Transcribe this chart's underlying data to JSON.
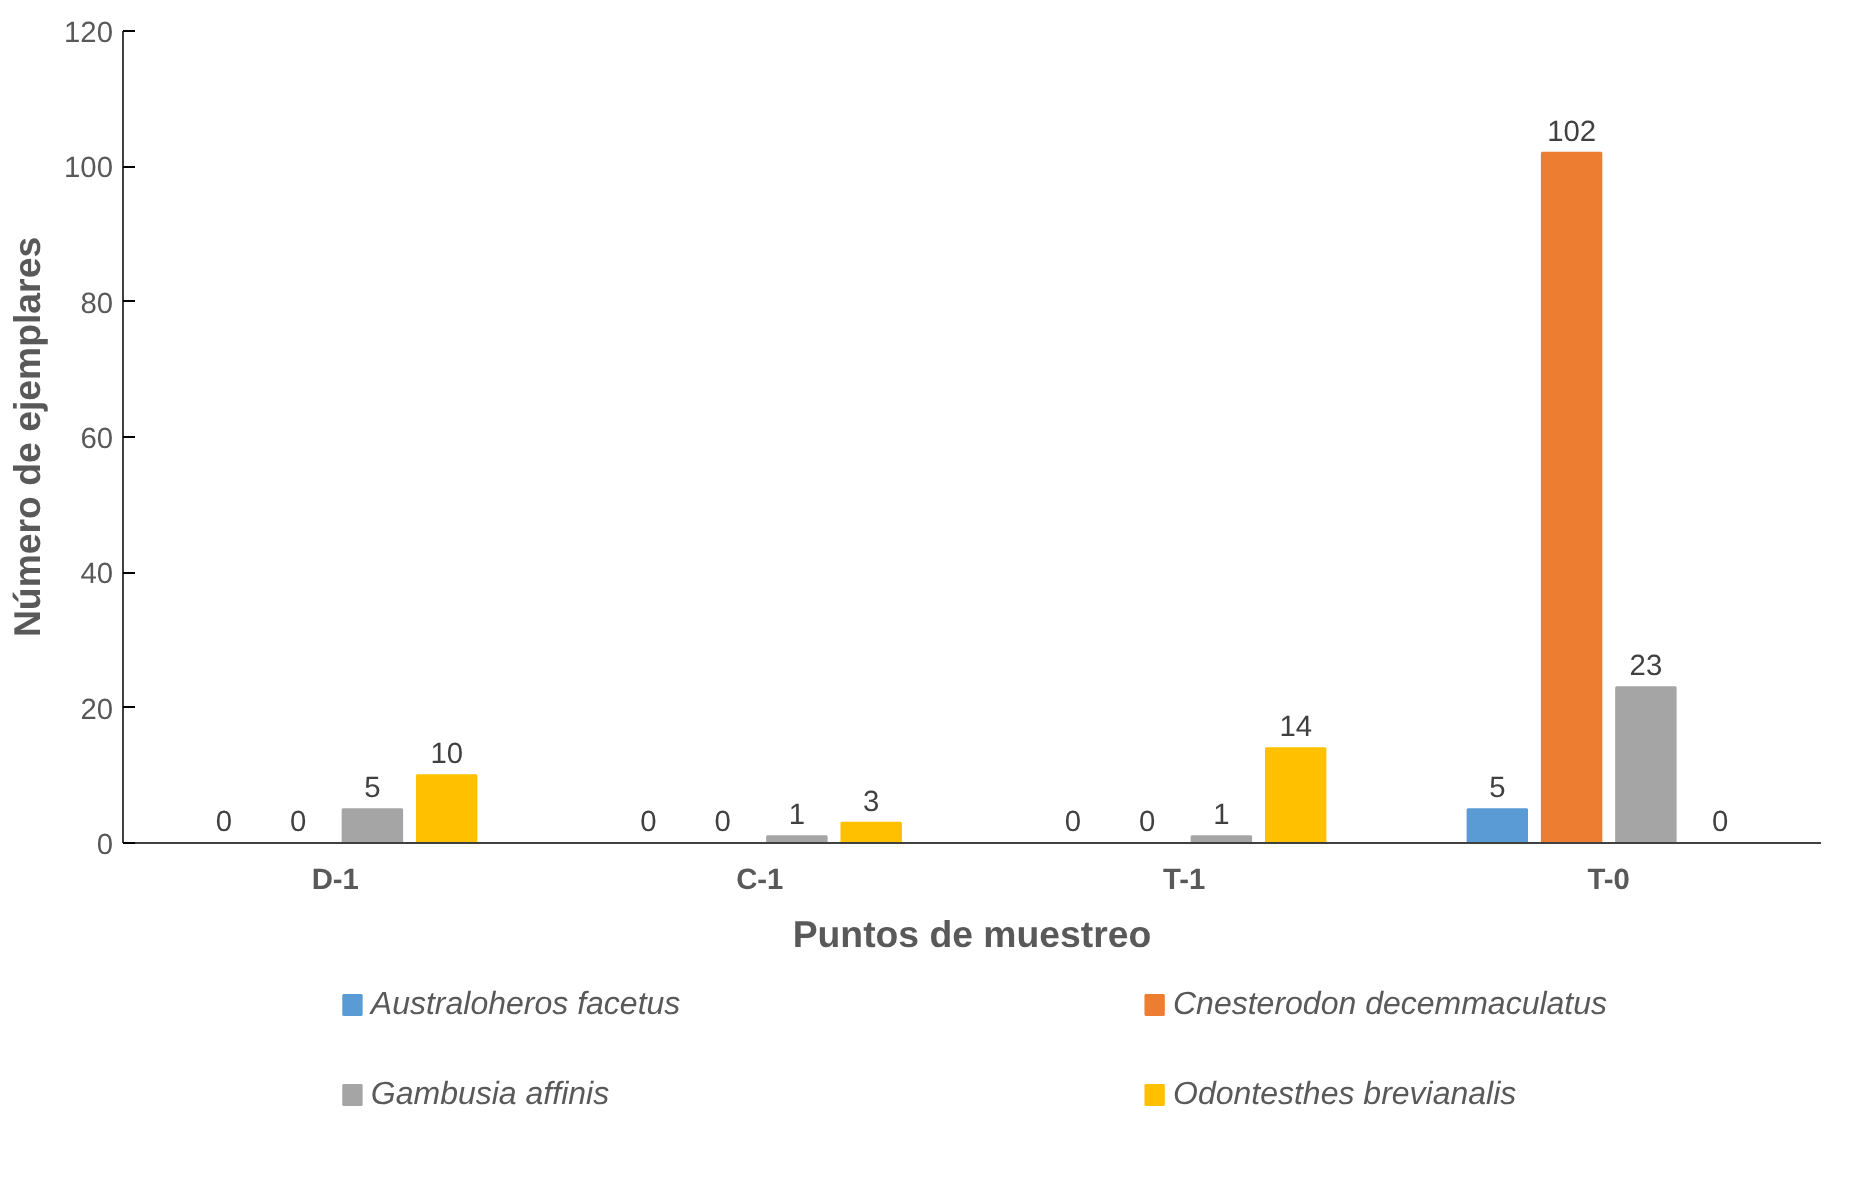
{
  "chart_data": {
    "type": "bar",
    "xlabel": "Puntos de muestreo",
    "ylabel": "Número de ejemplares",
    "categories": [
      "D-1",
      "C-1",
      "T-1",
      "T-0"
    ],
    "series": [
      {
        "name": "Australoheros facetus",
        "color": "#5b9bd5",
        "values": [
          0,
          0,
          0,
          5
        ]
      },
      {
        "name": "Cnesterodon decemmaculatus",
        "color": "#ed7d31",
        "values": [
          0,
          0,
          0,
          102
        ]
      },
      {
        "name": "Gambusia affinis",
        "color": "#a5a5a5",
        "values": [
          5,
          1,
          1,
          23
        ]
      },
      {
        "name": "Odontesthes brevianalis",
        "color": "#ffc000",
        "values": [
          10,
          3,
          14,
          0
        ]
      }
    ],
    "ylim": [
      0,
      120
    ],
    "yticks": [
      0,
      20,
      40,
      60,
      80,
      100,
      120
    ],
    "data_labels": true,
    "grid": false,
    "legend": "bottom"
  }
}
